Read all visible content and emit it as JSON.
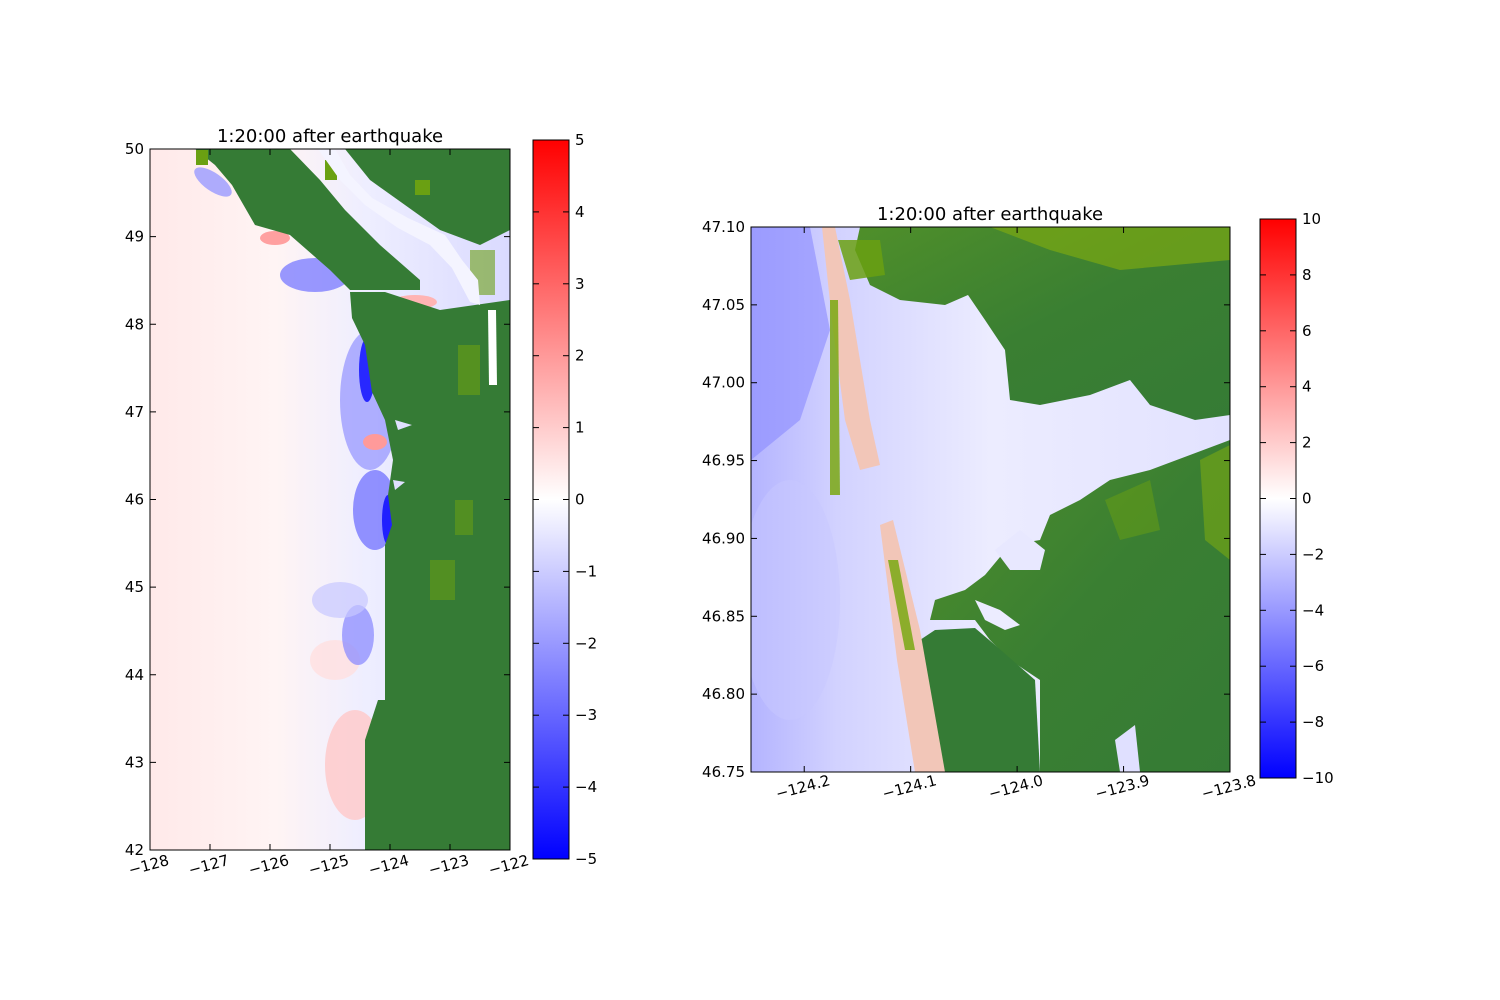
{
  "chart_data": [
    {
      "type": "heatmap",
      "title": "1:20:00 after earthquake",
      "xlim": [
        -128,
        -122
      ],
      "ylim": [
        42,
        50
      ],
      "x_ticks": [
        -128,
        -127,
        -126,
        -125,
        -124,
        -123,
        -122
      ],
      "x_tick_labels": [
        "−128",
        "−127",
        "−126",
        "−125",
        "−124",
        "−123",
        "−122"
      ],
      "y_ticks": [
        42,
        43,
        44,
        45,
        46,
        47,
        48,
        49,
        50
      ],
      "y_tick_labels": [
        "42",
        "43",
        "44",
        "45",
        "46",
        "47",
        "48",
        "49",
        "50"
      ],
      "colorbar": {
        "range": [
          -5,
          5
        ],
        "ticks": [
          -5,
          -4,
          -3,
          -2,
          -1,
          0,
          1,
          2,
          3,
          4,
          5
        ],
        "tick_labels": [
          "−5",
          "−4",
          "−3",
          "−2",
          "−1",
          "0",
          "1",
          "2",
          "3",
          "4",
          "5"
        ],
        "colormap": [
          "#0000ff",
          "#ffffff",
          "#ff0000"
        ]
      },
      "land_colors": [
        "#357b35",
        "#6aa012"
      ],
      "xlabel": "",
      "ylabel": ""
    },
    {
      "type": "heatmap",
      "title": "1:20:00 after earthquake",
      "xlim": [
        -124.25,
        -123.8
      ],
      "ylim": [
        46.75,
        47.1
      ],
      "x_ticks": [
        -124.2,
        -124.1,
        -124.0,
        -123.9,
        -123.8
      ],
      "x_tick_labels": [
        "−124.2",
        "−124.1",
        "−124.0",
        "−123.9",
        "−123.8"
      ],
      "y_ticks": [
        46.75,
        46.8,
        46.85,
        46.9,
        46.95,
        47.0,
        47.05,
        47.1
      ],
      "y_tick_labels": [
        "46.75",
        "46.80",
        "46.85",
        "46.90",
        "46.95",
        "47.00",
        "47.05",
        "47.10"
      ],
      "colorbar": {
        "range": [
          -10,
          10
        ],
        "ticks": [
          -10,
          -8,
          -6,
          -4,
          -2,
          0,
          2,
          4,
          6,
          8,
          10
        ],
        "tick_labels": [
          "−10",
          "−8",
          "−6",
          "−4",
          "−2",
          "0",
          "2",
          "4",
          "6",
          "8",
          "10"
        ],
        "colormap": [
          "#0000ff",
          "#ffffff",
          "#ff0000"
        ]
      },
      "land_colors": [
        "#357b35",
        "#6aa012"
      ],
      "xlabel": "",
      "ylabel": ""
    }
  ]
}
